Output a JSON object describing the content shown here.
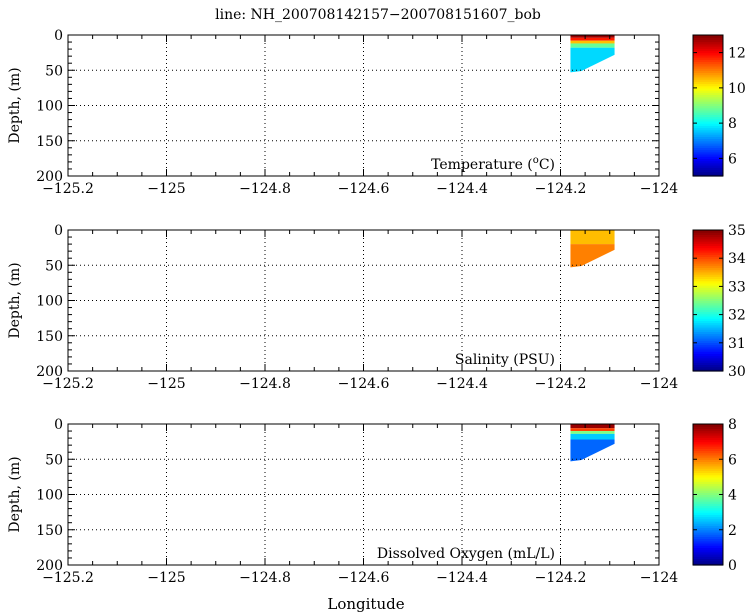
{
  "figure": {
    "title": "line: NH_200708142157−200708151607_bob",
    "xlabel": "Longitude"
  },
  "chart_data": [
    {
      "type": "heatmap",
      "variable": "temperature",
      "panel_label": "Temperature (oC)",
      "ylabel": "Depth, (m)",
      "xlim": [
        -125.2,
        -124.0
      ],
      "ylim": [
        0,
        200
      ],
      "y_reversed": true,
      "xticks": [
        "−125.2",
        "−125",
        "−124.8",
        "−124.6",
        "−124.4",
        "−124.2",
        "−124"
      ],
      "yticks": [
        "0",
        "50",
        "100",
        "150",
        "200"
      ],
      "grid": true,
      "colorbar": {
        "range": [
          5,
          13
        ],
        "ticks": [
          "6",
          "8",
          "10",
          "12"
        ],
        "colormap": "jet"
      },
      "section": {
        "lon_west": -124.18,
        "lon_east": -124.09,
        "max_depth_west": 53,
        "max_depth_east": 28
      },
      "layers": [
        {
          "depth_top": 0,
          "depth_bottom": 4,
          "value": 12.8
        },
        {
          "depth_top": 4,
          "depth_bottom": 8,
          "value": 11.8
        },
        {
          "depth_top": 8,
          "depth_bottom": 12,
          "value": 10.5
        },
        {
          "depth_top": 12,
          "depth_bottom": 18,
          "value": 8.8
        },
        {
          "depth_top": 18,
          "depth_bottom": 60,
          "value": 7.7
        }
      ]
    },
    {
      "type": "heatmap",
      "variable": "salinity",
      "panel_label": "Salinity (PSU)",
      "ylabel": "Depth, (m)",
      "xlim": [
        -125.2,
        -124.0
      ],
      "ylim": [
        0,
        200
      ],
      "y_reversed": true,
      "xticks": [
        "−125.2",
        "−125",
        "−124.8",
        "−124.6",
        "−124.4",
        "−124.2",
        "−124"
      ],
      "yticks": [
        "0",
        "50",
        "100",
        "150",
        "200"
      ],
      "grid": true,
      "colorbar": {
        "range": [
          30,
          35
        ],
        "ticks": [
          "30",
          "31",
          "32",
          "33",
          "34",
          "35"
        ],
        "colormap": "jet"
      },
      "section": {
        "lon_west": -124.18,
        "lon_east": -124.09,
        "max_depth_west": 53,
        "max_depth_east": 28
      },
      "layers": [
        {
          "depth_top": 0,
          "depth_bottom": 20,
          "value": 33.45
        },
        {
          "depth_top": 20,
          "depth_bottom": 60,
          "value": 33.75
        }
      ]
    },
    {
      "type": "heatmap",
      "variable": "dissolved_oxygen",
      "panel_label": "Dissolved Oxygen (mL/L)",
      "ylabel": "Depth, (m)",
      "xlim": [
        -125.2,
        -124.0
      ],
      "ylim": [
        0,
        200
      ],
      "y_reversed": true,
      "xticks": [
        "−125.2",
        "−125",
        "−124.8",
        "−124.6",
        "−124.4",
        "−124.2",
        "−124"
      ],
      "yticks": [
        "0",
        "50",
        "100",
        "150",
        "200"
      ],
      "grid": true,
      "colorbar": {
        "range": [
          0,
          8
        ],
        "ticks": [
          "0",
          "2",
          "4",
          "6",
          "8"
        ],
        "colormap": "jet"
      },
      "section": {
        "lon_west": -124.18,
        "lon_east": -124.09,
        "max_depth_west": 53,
        "max_depth_east": 28
      },
      "layers": [
        {
          "depth_top": 0,
          "depth_bottom": 6,
          "value": 7.8
        },
        {
          "depth_top": 6,
          "depth_bottom": 10,
          "value": 6.5
        },
        {
          "depth_top": 10,
          "depth_bottom": 14,
          "value": 4.0
        },
        {
          "depth_top": 14,
          "depth_bottom": 22,
          "value": 2.6
        },
        {
          "depth_top": 22,
          "depth_bottom": 60,
          "value": 1.8
        }
      ]
    }
  ]
}
